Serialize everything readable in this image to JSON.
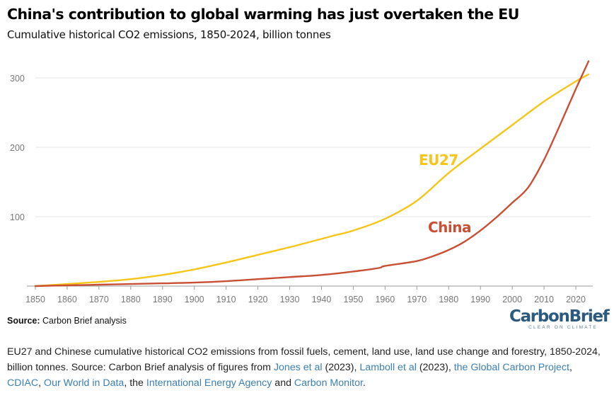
{
  "header": {
    "title": "China's contribution to global warming has just overtaken the EU",
    "subtitle": "Cumulative historical CO2 emissions, 1850-2024, billion tonnes"
  },
  "source": {
    "label": "Source:",
    "text": "Carbon Brief analysis"
  },
  "logo": {
    "name": "CarbonBrief",
    "tagline": "CLEAR ON CLIMATE"
  },
  "caption": {
    "t1": "EU27 and Chinese cumulative historical CO2 emissions from fossil fuels, cement, land use, land use change and forestry, 1850-2024, billion tonnes. Source: Carbon Brief analysis of figures from ",
    "link1": "Jones et al",
    "t2": " (2023), ",
    "link2": "Lamboll et al",
    "t3": " (2023), ",
    "link3": "the Global Carbon Project",
    "t4": ", ",
    "link4": "CDIAC",
    "t5": ", ",
    "link5": "Our World in Data",
    "t6": ", the ",
    "link6": "International Energy Agency",
    "t7": " and ",
    "link7": "Carbon Monitor",
    "t8": "."
  },
  "colors": {
    "eu": "#f5c518",
    "china": "#c94f34",
    "grid": "#e6e6e6",
    "axis": "#999999",
    "tick_text": "#777777",
    "link": "#3a7fb5"
  },
  "chart_data": {
    "type": "line",
    "title": "China's contribution to global warming has just overtaken the EU",
    "subtitle": "Cumulative historical CO2 emissions, 1850-2024, billion tonnes",
    "xlabel": "",
    "ylabel": "",
    "xlim": [
      1850,
      2024
    ],
    "ylim": [
      0,
      330
    ],
    "x_ticks": [
      1850,
      1860,
      1870,
      1880,
      1890,
      1900,
      1910,
      1920,
      1930,
      1940,
      1950,
      1960,
      1970,
      1980,
      1990,
      2000,
      2010,
      2020
    ],
    "y_ticks": [
      100,
      200,
      300
    ],
    "grid": true,
    "series": [
      {
        "name": "EU27",
        "label_text": "EU27",
        "color": "#f5c518",
        "x": [
          1850,
          1860,
          1870,
          1880,
          1890,
          1900,
          1910,
          1920,
          1930,
          1940,
          1944,
          1950,
          1960,
          1970,
          1980,
          1990,
          2000,
          2010,
          2020,
          2024
        ],
        "values": [
          0,
          3,
          6,
          10,
          16,
          24,
          34,
          45,
          56,
          68,
          73,
          80,
          97,
          123,
          163,
          198,
          232,
          266,
          295,
          305
        ]
      },
      {
        "name": "China",
        "label_text": "China",
        "color": "#c94f34",
        "x": [
          1850,
          1860,
          1870,
          1880,
          1890,
          1900,
          1910,
          1920,
          1930,
          1940,
          1950,
          1958,
          1960,
          1970,
          1975,
          1980,
          1985,
          1990,
          1995,
          2000,
          2005,
          2010,
          2015,
          2020,
          2024
        ],
        "values": [
          0,
          1,
          2,
          3,
          4,
          5,
          7,
          10,
          13,
          16,
          21,
          26,
          29,
          36,
          43,
          52,
          64,
          80,
          99,
          120,
          142,
          182,
          232,
          284,
          324
        ]
      }
    ]
  }
}
